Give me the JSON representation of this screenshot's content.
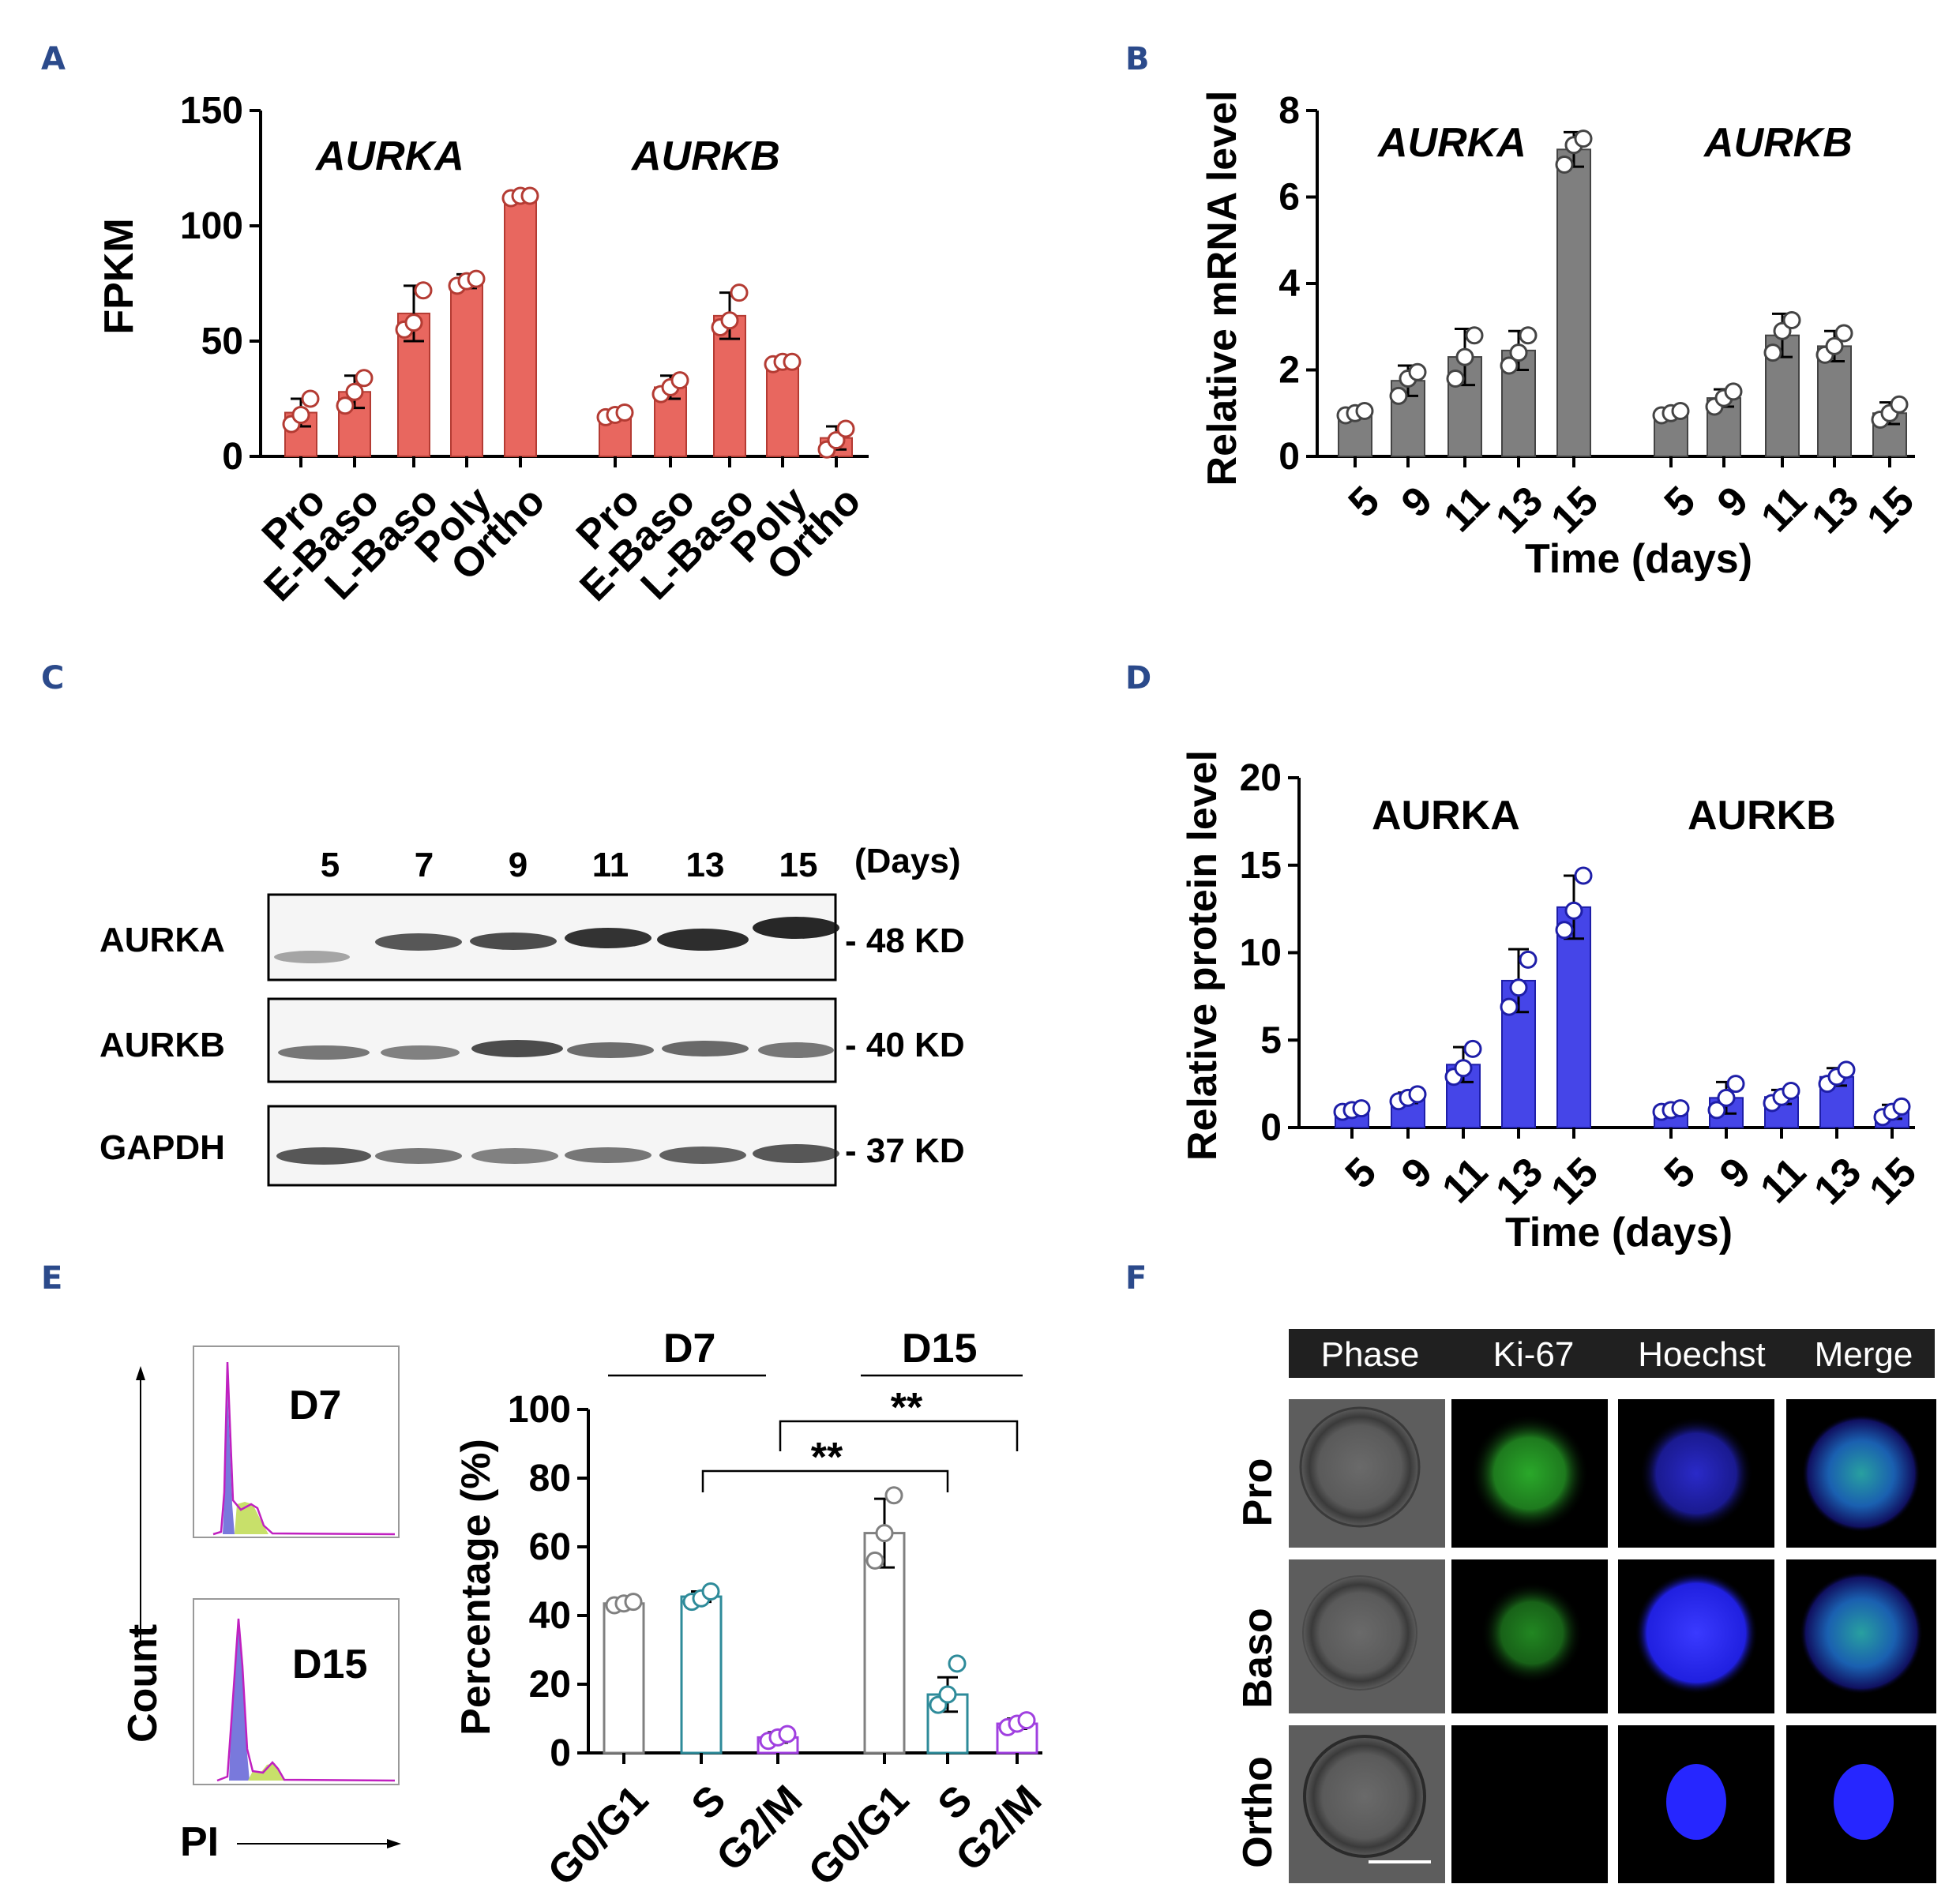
{
  "panel_labels": {
    "A": "A",
    "B": "B",
    "C": "C",
    "D": "D",
    "E": "E",
    "F": "F"
  },
  "colors": {
    "panelA": "#e8675f",
    "panelA_edge": "#b43b33",
    "panelB": "#7f7f7f",
    "panelB_edge": "#444444",
    "panelD": "#4545e8",
    "panelD_edge": "#1e1ea8",
    "e_g0g1": "#808080",
    "e_s": "#2e8b9a",
    "e_g2m": "#a040e0"
  },
  "chart_data": [
    {
      "id": "A",
      "type": "bar",
      "title": "",
      "ylabel": "FPKM",
      "xlabel": "",
      "ylim": [
        0,
        150
      ],
      "yticks": [
        0,
        50,
        100,
        150
      ],
      "groups": [
        "AURKA",
        "AURKB"
      ],
      "categories": [
        "Pro",
        "E-Baso",
        "L-Baso",
        "Poly",
        "Ortho",
        "Pro",
        "E-Baso",
        "L-Baso",
        "Poly",
        "Ortho"
      ],
      "values": [
        19,
        28,
        62,
        76,
        113,
        18,
        30,
        61,
        41,
        8
      ],
      "errors": [
        6,
        7,
        12,
        3,
        1,
        2,
        5,
        10,
        1,
        5
      ],
      "points": [
        [
          14,
          18,
          25
        ],
        [
          22,
          28,
          34
        ],
        [
          55,
          58,
          72
        ],
        [
          74,
          76,
          77
        ],
        [
          112,
          113,
          113
        ],
        [
          17,
          18,
          19
        ],
        [
          27,
          30,
          33
        ],
        [
          56,
          59,
          71
        ],
        [
          40,
          41,
          41
        ],
        [
          3,
          7,
          12
        ]
      ]
    },
    {
      "id": "B",
      "type": "bar",
      "ylabel": "Relative mRNA level",
      "xlabel": "Time (days)",
      "ylim": [
        0,
        8
      ],
      "yticks": [
        0,
        2,
        4,
        6,
        8
      ],
      "groups": [
        "AURKA",
        "AURKB"
      ],
      "categories": [
        "5",
        "9",
        "11",
        "13",
        "15",
        "5",
        "9",
        "11",
        "13",
        "15"
      ],
      "values": [
        1.0,
        1.75,
        2.3,
        2.45,
        7.1,
        1.0,
        1.35,
        2.8,
        2.55,
        1.0
      ],
      "errors": [
        0.05,
        0.35,
        0.65,
        0.45,
        0.4,
        0.05,
        0.2,
        0.5,
        0.35,
        0.25
      ],
      "points": [
        [
          0.95,
          1.0,
          1.05
        ],
        [
          1.4,
          1.8,
          1.95
        ],
        [
          1.8,
          2.3,
          2.8
        ],
        [
          2.1,
          2.4,
          2.8
        ],
        [
          6.75,
          7.2,
          7.35
        ],
        [
          0.95,
          1.0,
          1.05
        ],
        [
          1.15,
          1.35,
          1.5
        ],
        [
          2.4,
          2.9,
          3.15
        ],
        [
          2.35,
          2.55,
          2.85
        ],
        [
          0.85,
          1.0,
          1.2
        ]
      ]
    },
    {
      "id": "D",
      "type": "bar",
      "ylabel": "Relative protein level",
      "xlabel": "Time (days)",
      "ylim": [
        0,
        20
      ],
      "yticks": [
        0,
        5,
        10,
        15,
        20
      ],
      "groups": [
        "AURKA",
        "AURKB"
      ],
      "categories": [
        "5",
        "9",
        "11",
        "13",
        "15",
        "5",
        "9",
        "11",
        "13",
        "15"
      ],
      "values": [
        1.0,
        1.7,
        3.6,
        8.4,
        12.6,
        1.0,
        1.7,
        1.75,
        2.9,
        0.9
      ],
      "errors": [
        0.15,
        0.3,
        1.0,
        1.8,
        1.8,
        0.1,
        0.9,
        0.4,
        0.5,
        0.4
      ],
      "points": [
        [
          0.9,
          1.0,
          1.1
        ],
        [
          1.5,
          1.7,
          1.9
        ],
        [
          2.9,
          3.4,
          4.5
        ],
        [
          6.9,
          8.0,
          9.6
        ],
        [
          11.3,
          12.4,
          14.4
        ],
        [
          0.9,
          1.0,
          1.1
        ],
        [
          1.0,
          1.7,
          2.5
        ],
        [
          1.4,
          1.75,
          2.1
        ],
        [
          2.5,
          2.9,
          3.3
        ],
        [
          0.6,
          0.9,
          1.2
        ]
      ]
    },
    {
      "id": "E",
      "type": "bar",
      "ylabel": "Percentage (%)",
      "xlabel": "",
      "ylim": [
        0,
        100
      ],
      "yticks": [
        0,
        20,
        40,
        60,
        80,
        100
      ],
      "groups": [
        "D7",
        "D15"
      ],
      "categories": [
        "G0/G1",
        "S",
        "G2/M",
        "G0/G1",
        "S",
        "G2/M"
      ],
      "values": [
        43.5,
        45.5,
        4.5,
        64,
        17,
        8.5
      ],
      "errors": [
        0.7,
        1.5,
        1.5,
        10,
        5,
        1.5
      ],
      "points": [
        [
          43,
          43.5,
          44
        ],
        [
          44,
          45,
          47
        ],
        [
          3.5,
          4.5,
          5.5
        ],
        [
          56,
          64,
          75
        ],
        [
          14,
          17,
          26
        ],
        [
          7.5,
          8.5,
          9.5
        ]
      ],
      "annotations": [
        "**",
        "**"
      ]
    }
  ],
  "panelA": {
    "groups": [
      "AURKA",
      "AURKB"
    ]
  },
  "panelB": {
    "groups": [
      "AURKA",
      "AURKB"
    ]
  },
  "panelD": {
    "groups": [
      "AURKA",
      "AURKB"
    ]
  },
  "panelC": {
    "days": [
      "5",
      "7",
      "9",
      "11",
      "13",
      "15"
    ],
    "days_label": "(Days)",
    "bands": [
      {
        "name": "AURKA",
        "size": "- 48 KD"
      },
      {
        "name": "AURKB",
        "size": "- 40 KD"
      },
      {
        "name": "GAPDH",
        "size": "- 37 KD"
      }
    ]
  },
  "panelE": {
    "hist_ylabel": "Count",
    "hist_xlabel": "PI",
    "hist_titles": [
      "D7",
      "D15"
    ],
    "groups": [
      "D7",
      "D15"
    ],
    "sig1": "**",
    "sig2": "**"
  },
  "panelF": {
    "columns": [
      "Phase",
      "Ki-67",
      "Hoechst",
      "Merge"
    ],
    "column_colors": [
      "#ffffff",
      "#3fbf3f",
      "#2a2ad8",
      "#ffffff"
    ],
    "rows": [
      "Pro",
      "Baso",
      "Ortho"
    ]
  }
}
